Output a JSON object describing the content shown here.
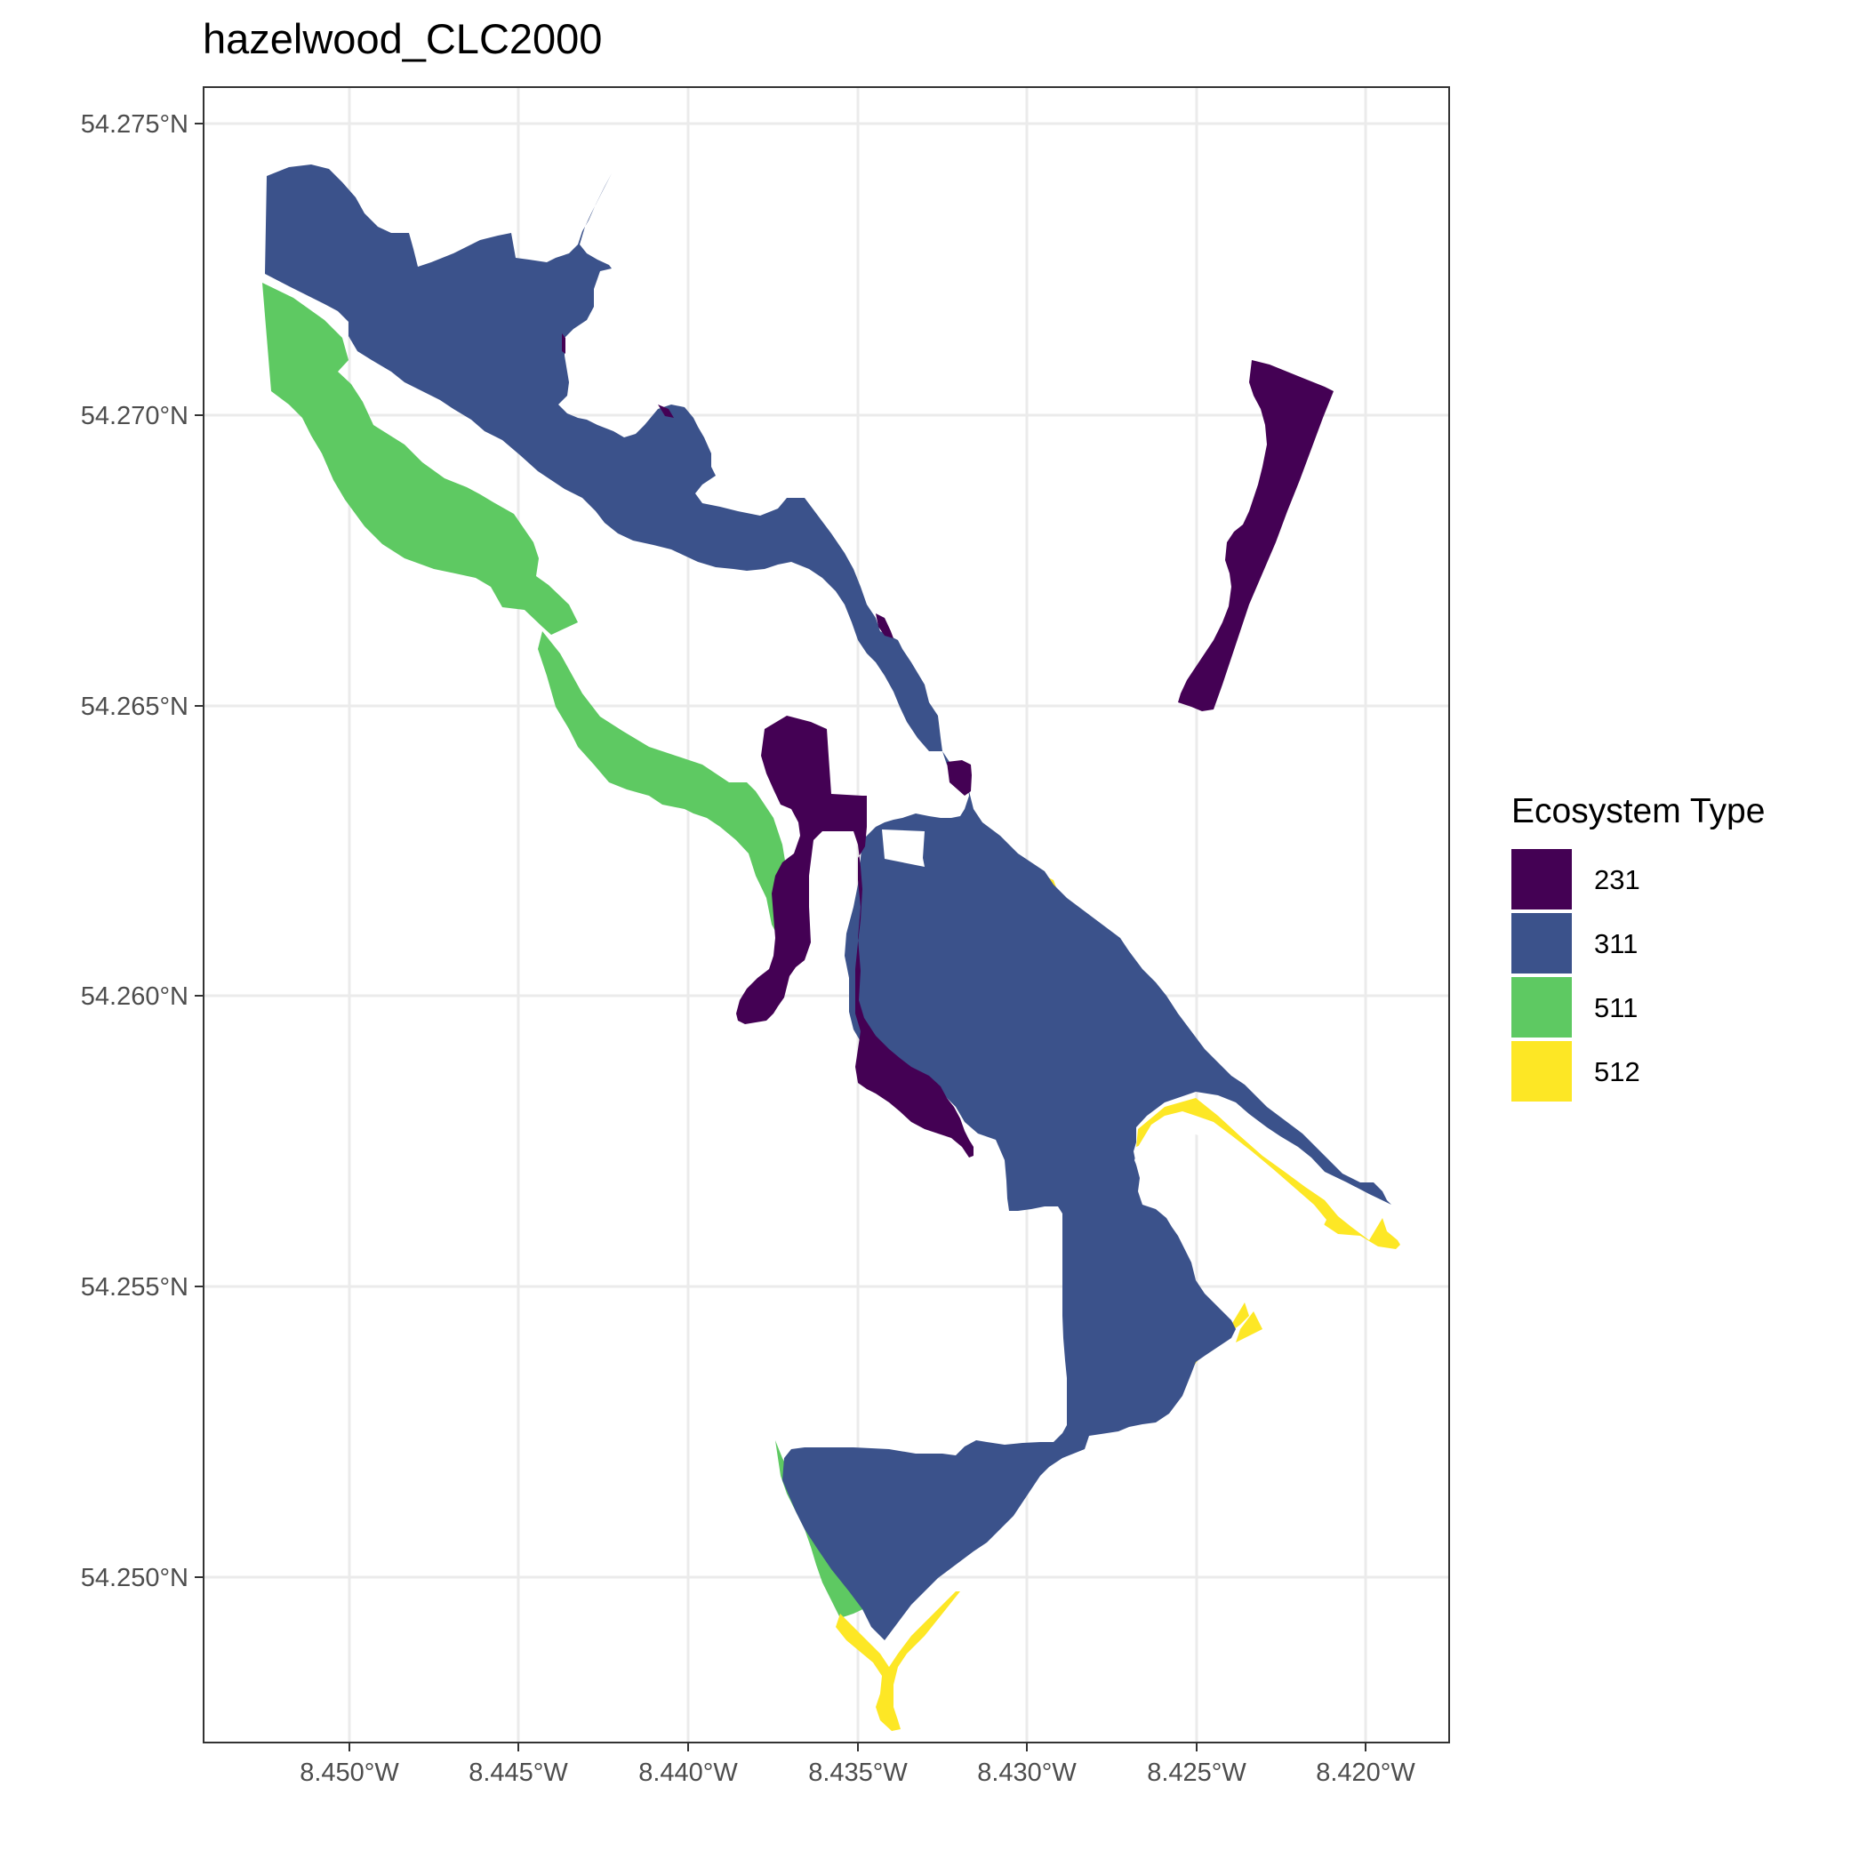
{
  "title": "hazelwood_CLC2000",
  "axes": {
    "x_ticks": [
      "8.450°W",
      "8.445°W",
      "8.440°W",
      "8.435°W",
      "8.430°W",
      "8.425°W",
      "8.420°W"
    ],
    "y_ticks": [
      "54.275°N",
      "54.270°N",
      "54.265°N",
      "54.260°N",
      "54.255°N",
      "54.250°N"
    ]
  },
  "legend": {
    "title": "Ecosystem Type",
    "items": [
      {
        "label": "231",
        "color": "#440154"
      },
      {
        "label": "311",
        "color": "#3b528b"
      },
      {
        "label": "511",
        "color": "#5ec962"
      },
      {
        "label": "512",
        "color": "#fde725"
      }
    ]
  },
  "colors": {
    "panel_border": "#333333",
    "grid": "#ebebeb",
    "tick": "#333333"
  }
}
